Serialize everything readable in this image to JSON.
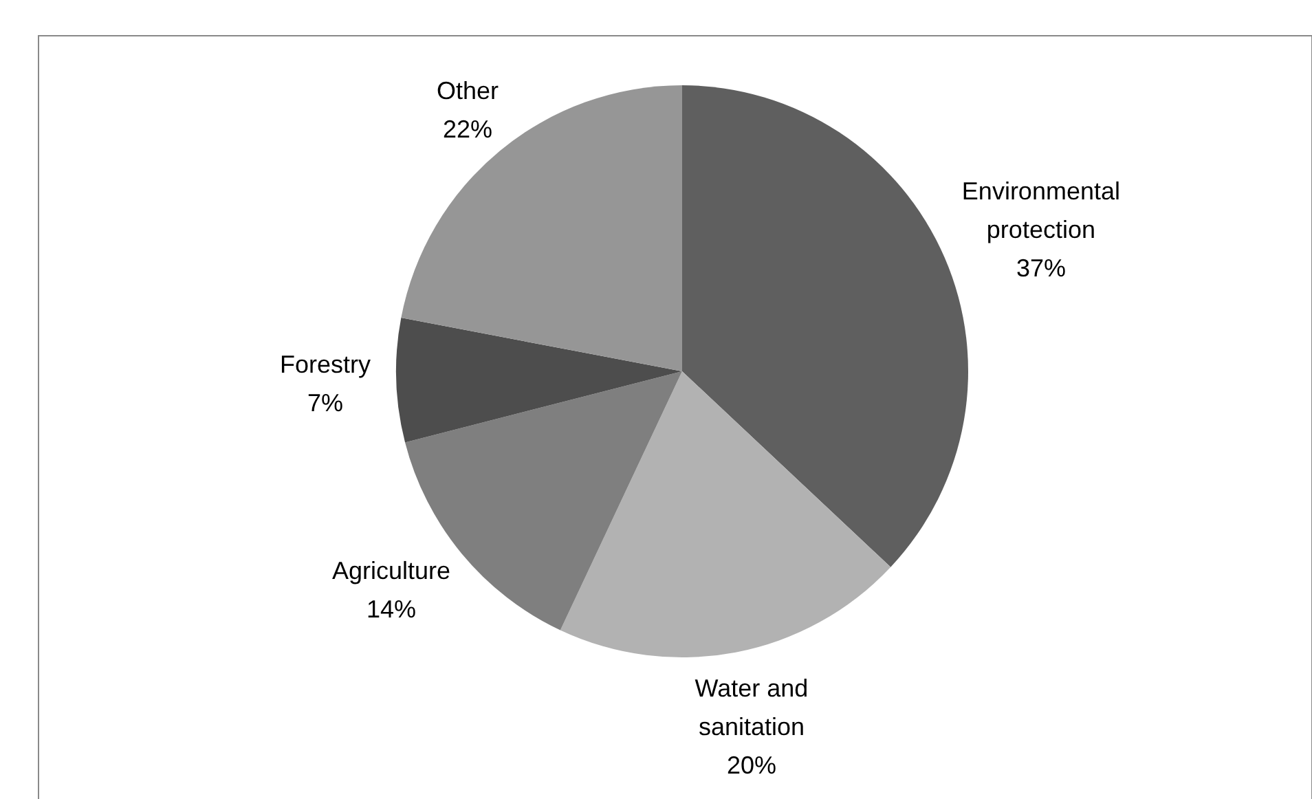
{
  "chart_data": {
    "type": "pie",
    "categories": [
      "Environmental protection",
      "Water and sanitation",
      "Agriculture",
      "Forestry",
      "Other"
    ],
    "values": [
      37,
      20,
      14,
      7,
      22
    ],
    "value_labels": [
      "37%",
      "20%",
      "14%",
      "7%",
      "22%"
    ],
    "colors": [
      "#5f5f5f",
      "#b2b2b2",
      "#7f7f7f",
      "#4d4d4d",
      "#969696"
    ]
  }
}
